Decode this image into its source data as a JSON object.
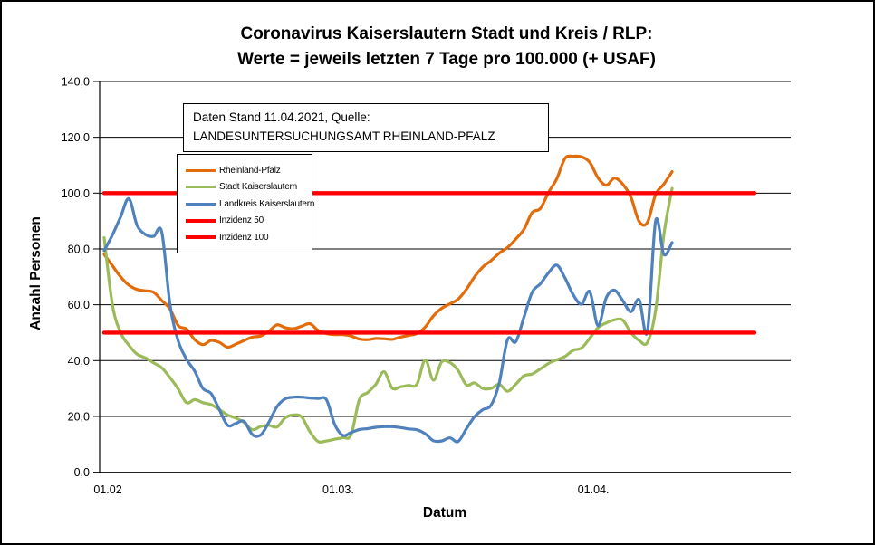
{
  "window": {
    "background": "#FFFFFF",
    "border_color": "#000000"
  },
  "chart_data": {
    "type": "line",
    "title_line1": "Coronavirus Kaiserslautern Stadt und Kreis / RLP:",
    "title_line2": "Werte = jeweils letzten 7 Tage pro 100.000 (+ USAF)",
    "xlabel": "Datum",
    "ylabel": "Anzahl Personen",
    "ylim": [
      0,
      140
    ],
    "grid": "horizontal",
    "legend_position": "inside-upper-left",
    "annotation": "Daten Stand 11.04.2021, Quelle: LANDESUNTERSUCHUNGSAMT RHEINLAND-PFALZ",
    "x_range": "01.02.2021 bis 11.04.2021, ein Wert pro Tag",
    "x_tick_labels": [
      {
        "label": "01.02",
        "day": 0
      },
      {
        "label": "01.03.",
        "day": 28
      },
      {
        "label": "01.04.",
        "day": 59
      }
    ],
    "y_tick_labels": [
      {
        "value": 0,
        "label": "0,0"
      },
      {
        "value": 20,
        "label": "20,0"
      },
      {
        "value": 40,
        "label": "40,0"
      },
      {
        "value": 60,
        "label": "60,0"
      },
      {
        "value": 80,
        "label": "80,0"
      },
      {
        "value": 100,
        "label": "100,0"
      },
      {
        "value": 120,
        "label": "120,0"
      },
      {
        "value": 140,
        "label": "140,0"
      }
    ],
    "series": [
      {
        "name": "Rheinland-Pfalz",
        "color": "#E26B0A",
        "style": "line",
        "values": [
          78,
          74,
          70,
          67,
          65.5,
          65,
          64.5,
          61.5,
          58.5,
          52.5,
          51.3,
          47.5,
          45.7,
          47.2,
          46.5,
          44.8,
          45.9,
          47.2,
          48.4,
          48.8,
          50.5,
          52.8,
          51.8,
          51.4,
          52.3,
          53.2,
          50.8,
          49.7,
          49.3,
          49.3,
          48.8,
          47.7,
          47.5,
          47.9,
          47.8,
          47.6,
          48.4,
          49,
          49.7,
          52,
          56,
          58.7,
          60.3,
          62,
          65.5,
          70,
          73.5,
          75.8,
          78.5,
          80.5,
          83.5,
          87,
          93,
          94.5,
          100.3,
          105.2,
          112.5,
          113.2,
          113,
          111,
          105.5,
          102.8,
          105.4,
          103.2,
          98.5,
          89.8,
          89.5,
          99.5,
          103.2,
          107.7
        ]
      },
      {
        "name": "Stadt Kaiserslautern",
        "color": "#9BBB59",
        "style": "line",
        "values": [
          84,
          60,
          50,
          45.5,
          42.3,
          41,
          39.2,
          37.4,
          33.9,
          29.8,
          24.9,
          26,
          24.9,
          24.2,
          22.4,
          20.5,
          19.4,
          17.8,
          15.2,
          16.4,
          16.8,
          16.2,
          19.5,
          20.5,
          19.8,
          14.5,
          11,
          11.2,
          11.8,
          12.4,
          13.4,
          26,
          28.5,
          31.5,
          36,
          30.1,
          30.6,
          31.1,
          31.5,
          40.3,
          33,
          39.5,
          39.3,
          36.5,
          31.3,
          32,
          30,
          30,
          31.5,
          29,
          31.5,
          34.5,
          35.2,
          37,
          39,
          40.3,
          41.5,
          43.7,
          44.5,
          48,
          51.8,
          53.5,
          54.6,
          54.5,
          50,
          47.2,
          46.5,
          58,
          85,
          101.7
        ]
      },
      {
        "name": "Landkreis Kaiserslautern",
        "color": "#4F81BD",
        "style": "line",
        "values": [
          79.4,
          85,
          91.5,
          98,
          88.5,
          85.2,
          84.5,
          86,
          60,
          47,
          40.5,
          36.2,
          30,
          28.2,
          22.4,
          16.8,
          17.5,
          18.2,
          13.5,
          13.3,
          17.8,
          23.5,
          26.3,
          26.9,
          26.9,
          26.6,
          26.4,
          26,
          17.2,
          13.2,
          14.2,
          15.3,
          15.6,
          16.1,
          16.3,
          16.3,
          16,
          15.5,
          15.2,
          13.8,
          11.3,
          11.2,
          12.3,
          11,
          15.5,
          19.9,
          22.4,
          24,
          32,
          47.5,
          46.7,
          55.5,
          64.5,
          67.5,
          71.5,
          74.2,
          69.5,
          63.5,
          60.2,
          64.7,
          52.5,
          62.5,
          65.2,
          61.5,
          57.5,
          61.8,
          50.3,
          90,
          78,
          82.3
        ]
      },
      {
        "name": "Inzidenz 50",
        "color": "#FF0000",
        "style": "hline",
        "value": 50
      },
      {
        "name": "Inzidenz 100",
        "color": "#FF0000",
        "style": "hline",
        "value": 100
      }
    ]
  }
}
